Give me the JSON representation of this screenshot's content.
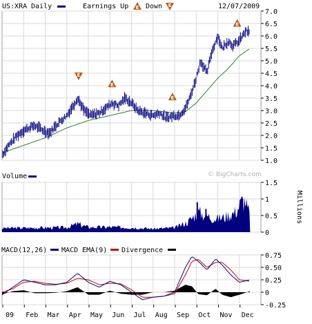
{
  "header": {
    "symbol": "US:XRA",
    "period": "Daily",
    "earnings_up_label": "Earnings Up",
    "earnings_down_label": "Down",
    "earnings_marker_letter": "E",
    "date": "12/07/2009"
  },
  "watermark": "© BigCharts.com",
  "colors": {
    "price": "#000080",
    "moving_average": "#2e7d32",
    "volume": "#000080",
    "macd": "#000080",
    "macd_ema": "#cc0000",
    "divergence": "#000000",
    "earnings_marker": "#b85a14",
    "grid": "#d8d8d8"
  },
  "chart_data": [
    {
      "type": "line",
      "name": "price",
      "x_ticks": [
        "09",
        "Feb",
        "Mar",
        "Apr",
        "May",
        "Jun",
        "Jul",
        "Aug",
        "Sep",
        "Oct",
        "Nov",
        "Dec"
      ],
      "ylim": [
        1.0,
        7.0
      ],
      "y_ticks": [
        "1.0",
        "1.5",
        "2.0",
        "2.5",
        "3.0",
        "3.5",
        "4.0",
        "4.5",
        "5.0",
        "5.5",
        "6.0",
        "6.5",
        "7.0"
      ],
      "price_points": [
        [
          0.0,
          1.2
        ],
        [
          0.3,
          1.6
        ],
        [
          0.7,
          2.0
        ],
        [
          1.0,
          2.2
        ],
        [
          1.5,
          2.4
        ],
        [
          1.9,
          2.2
        ],
        [
          2.2,
          2.1
        ],
        [
          2.6,
          2.5
        ],
        [
          3.0,
          2.8
        ],
        [
          3.3,
          3.2
        ],
        [
          3.5,
          3.5
        ],
        [
          3.8,
          3.0
        ],
        [
          4.1,
          2.8
        ],
        [
          4.5,
          2.9
        ],
        [
          4.8,
          3.1
        ],
        [
          5.1,
          3.3
        ],
        [
          5.4,
          3.2
        ],
        [
          5.7,
          3.5
        ],
        [
          6.0,
          3.3
        ],
        [
          6.3,
          3.0
        ],
        [
          6.6,
          2.9
        ],
        [
          7.0,
          2.8
        ],
        [
          7.3,
          2.9
        ],
        [
          7.6,
          2.7
        ],
        [
          8.0,
          2.8
        ],
        [
          8.2,
          2.8
        ],
        [
          8.5,
          3.1
        ],
        [
          8.7,
          3.5
        ],
        [
          9.0,
          4.3
        ],
        [
          9.2,
          5.0
        ],
        [
          9.5,
          4.5
        ],
        [
          9.7,
          5.3
        ],
        [
          10.0,
          6.0
        ],
        [
          10.2,
          5.5
        ],
        [
          10.5,
          5.8
        ],
        [
          10.7,
          5.6
        ],
        [
          11.0,
          5.8
        ],
        [
          11.3,
          6.2
        ],
        [
          11.5,
          6.1
        ]
      ],
      "ma_points": [
        [
          0.0,
          1.3
        ],
        [
          1.0,
          1.6
        ],
        [
          2.0,
          1.9
        ],
        [
          3.0,
          2.3
        ],
        [
          4.0,
          2.6
        ],
        [
          5.0,
          2.8
        ],
        [
          6.0,
          3.0
        ],
        [
          7.0,
          3.0
        ],
        [
          8.0,
          2.9
        ],
        [
          8.5,
          2.95
        ],
        [
          9.0,
          3.3
        ],
        [
          9.5,
          3.8
        ],
        [
          10.0,
          4.3
        ],
        [
          10.5,
          4.7
        ],
        [
          11.0,
          5.2
        ],
        [
          11.5,
          5.5
        ]
      ],
      "earnings": [
        {
          "x": 3.55,
          "direction": "down"
        },
        {
          "x": 5.1,
          "direction": "up"
        },
        {
          "x": 7.9,
          "direction": "up"
        },
        {
          "x": 10.9,
          "direction": "up"
        }
      ]
    },
    {
      "type": "bar",
      "name": "Volume",
      "ylim": [
        0,
        1.5
      ],
      "y_ticks": [
        "1.5",
        "1",
        "0.5",
        "0"
      ],
      "ylabel": "Millions",
      "volume_profile": [
        [
          0.0,
          0.12
        ],
        [
          3.0,
          0.14
        ],
        [
          3.5,
          0.25
        ],
        [
          4.0,
          0.15
        ],
        [
          5.0,
          0.15
        ],
        [
          6.0,
          0.14
        ],
        [
          7.0,
          0.1
        ],
        [
          8.0,
          0.13
        ],
        [
          8.6,
          0.3
        ],
        [
          9.1,
          0.6
        ],
        [
          9.5,
          0.5
        ],
        [
          9.9,
          0.4
        ],
        [
          10.3,
          0.45
        ],
        [
          10.8,
          0.6
        ],
        [
          11.2,
          1.0
        ],
        [
          11.5,
          0.5
        ]
      ],
      "volume_spikes": [
        [
          9.05,
          0.9
        ],
        [
          9.45,
          0.7
        ],
        [
          11.15,
          1.0
        ],
        [
          11.3,
          0.8
        ]
      ]
    },
    {
      "type": "line",
      "name": "macd",
      "legend": [
        "MACD(12,26)",
        "MACD EMA(9)",
        "Divergence"
      ],
      "ylim": [
        -0.25,
        0.75
      ],
      "y_ticks": [
        "0.75",
        "0.50",
        "0.25",
        "0",
        "-0.25"
      ],
      "macd_points": [
        [
          0.0,
          -0.05
        ],
        [
          0.5,
          0.1
        ],
        [
          1.0,
          0.25
        ],
        [
          1.5,
          0.2
        ],
        [
          2.0,
          0.15
        ],
        [
          2.5,
          0.15
        ],
        [
          3.0,
          0.2
        ],
        [
          3.5,
          0.38
        ],
        [
          4.0,
          0.2
        ],
        [
          4.5,
          0.1
        ],
        [
          5.0,
          0.22
        ],
        [
          5.5,
          0.15
        ],
        [
          6.0,
          0.0
        ],
        [
          6.5,
          -0.15
        ],
        [
          7.0,
          -0.1
        ],
        [
          7.5,
          -0.08
        ],
        [
          8.0,
          0.0
        ],
        [
          8.5,
          0.5
        ],
        [
          8.8,
          0.72
        ],
        [
          9.1,
          0.62
        ],
        [
          9.5,
          0.45
        ],
        [
          9.9,
          0.67
        ],
        [
          10.2,
          0.55
        ],
        [
          10.6,
          0.35
        ],
        [
          11.0,
          0.2
        ],
        [
          11.5,
          0.25
        ]
      ],
      "ema_points": [
        [
          0.0,
          0.0
        ],
        [
          0.5,
          0.07
        ],
        [
          1.0,
          0.2
        ],
        [
          1.5,
          0.22
        ],
        [
          2.0,
          0.18
        ],
        [
          2.5,
          0.16
        ],
        [
          3.0,
          0.18
        ],
        [
          3.5,
          0.28
        ],
        [
          4.0,
          0.25
        ],
        [
          4.5,
          0.15
        ],
        [
          5.0,
          0.18
        ],
        [
          5.5,
          0.17
        ],
        [
          6.0,
          0.05
        ],
        [
          6.5,
          -0.1
        ],
        [
          7.0,
          -0.1
        ],
        [
          7.5,
          -0.08
        ],
        [
          8.0,
          -0.03
        ],
        [
          8.5,
          0.35
        ],
        [
          8.8,
          0.62
        ],
        [
          9.1,
          0.66
        ],
        [
          9.5,
          0.5
        ],
        [
          9.9,
          0.6
        ],
        [
          10.2,
          0.6
        ],
        [
          10.6,
          0.45
        ],
        [
          11.0,
          0.25
        ],
        [
          11.5,
          0.22
        ]
      ],
      "divergence_points": [
        [
          0.0,
          -0.04
        ],
        [
          0.5,
          0.02
        ],
        [
          1.0,
          0.04
        ],
        [
          1.5,
          -0.02
        ],
        [
          2.0,
          -0.02
        ],
        [
          2.5,
          -0.01
        ],
        [
          3.0,
          0.02
        ],
        [
          3.5,
          0.1
        ],
        [
          4.0,
          -0.05
        ],
        [
          4.5,
          -0.05
        ],
        [
          5.0,
          0.03
        ],
        [
          5.5,
          -0.03
        ],
        [
          6.0,
          -0.05
        ],
        [
          6.5,
          -0.05
        ],
        [
          7.0,
          0.0
        ],
        [
          7.5,
          0.0
        ],
        [
          8.0,
          0.03
        ],
        [
          8.5,
          0.15
        ],
        [
          8.8,
          0.12
        ],
        [
          9.1,
          -0.04
        ],
        [
          9.5,
          -0.06
        ],
        [
          9.9,
          0.07
        ],
        [
          10.2,
          -0.05
        ],
        [
          10.6,
          -0.1
        ],
        [
          11.0,
          -0.05
        ],
        [
          11.5,
          0.02
        ]
      ]
    }
  ]
}
